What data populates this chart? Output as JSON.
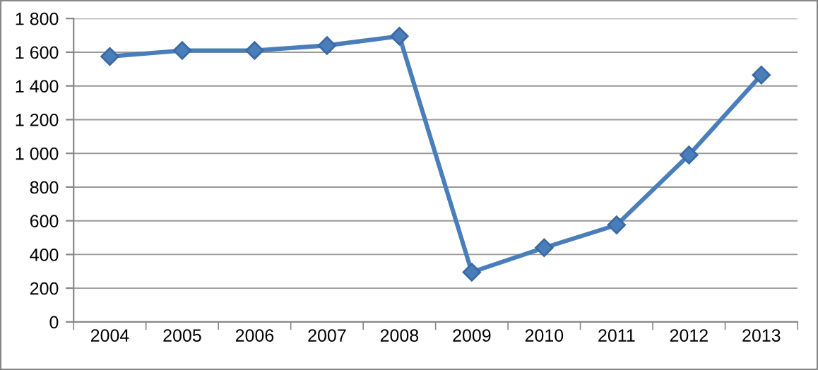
{
  "chart_data": {
    "type": "line",
    "categories": [
      "2004",
      "2005",
      "2006",
      "2007",
      "2008",
      "2009",
      "2010",
      "2011",
      "2012",
      "2013"
    ],
    "series": [
      {
        "color": "#4a7ebb",
        "values": [
          1575,
          1610,
          1610,
          1640,
          1695,
          295,
          440,
          575,
          990,
          1465
        ]
      }
    ],
    "ylim": [
      0,
      1800
    ],
    "yticks": [
      0,
      200,
      400,
      600,
      800,
      {
        "value": 1000,
        "label": "1 000"
      },
      {
        "value": 1200,
        "label": "1 200"
      },
      {
        "value": 1400,
        "label": "1 400"
      },
      {
        "value": 1600,
        "label": "1 600"
      },
      {
        "value": 1800,
        "label": "1 800"
      }
    ],
    "grid": "y",
    "marker": "diamond",
    "line_style": "solid",
    "legend": false
  }
}
